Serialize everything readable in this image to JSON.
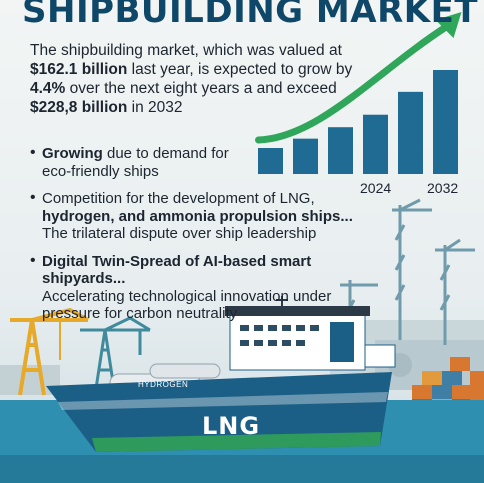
{
  "title": "SHIPBUILDING MARKET",
  "intro": {
    "text_1": "The shipbuilding market, which was valued at ",
    "value_2023": "$162.1 billion",
    "text_2": " last year, is expected to grow by ",
    "growth": "4.4%",
    "text_3": " over the next eight years a and exceed ",
    "value_2032": "$228,8 billion",
    "text_4": " in 2032"
  },
  "bullets": [
    {
      "bold": "Growing",
      "rest": " due to demand for",
      "line2": "eco-friendly ships"
    },
    {
      "bold": "Competition for the development of LNG,",
      "rest": "",
      "line2": "hydrogen, and ammonia propulsion ships..."
    },
    {
      "bold": "",
      "rest": "The trilateral dispute over ship leadership",
      "line2": ""
    },
    {
      "bold": "Digital Twin-Spread of AI-based smart shipyards...",
      "rest": "",
      "line2": "Accelerating technological innovation under"
    },
    {
      "bold": "",
      "rest": "pressure for carbon neutrality",
      "line2": ""
    }
  ],
  "ship": {
    "label": "LNG",
    "name": "HYDROGEN"
  },
  "chart_data": {
    "type": "bar",
    "title": "",
    "xlabel": "",
    "ylabel": "",
    "tick_labels": [
      "2024",
      "2032"
    ],
    "values": [
      25,
      34,
      45,
      57,
      79,
      100
    ],
    "ylim": [
      0,
      100
    ],
    "trend_arrow": true,
    "bar_color": "#1f6b93",
    "arrow_color": "#2fa65a"
  },
  "colors": {
    "title": "#0f4768",
    "hull": "#1b5f86",
    "hull_stripe": "#2e9a5b",
    "crane": "#e7a92a",
    "crane_gray": "#6f9bab",
    "water": "#2f8fb0"
  }
}
